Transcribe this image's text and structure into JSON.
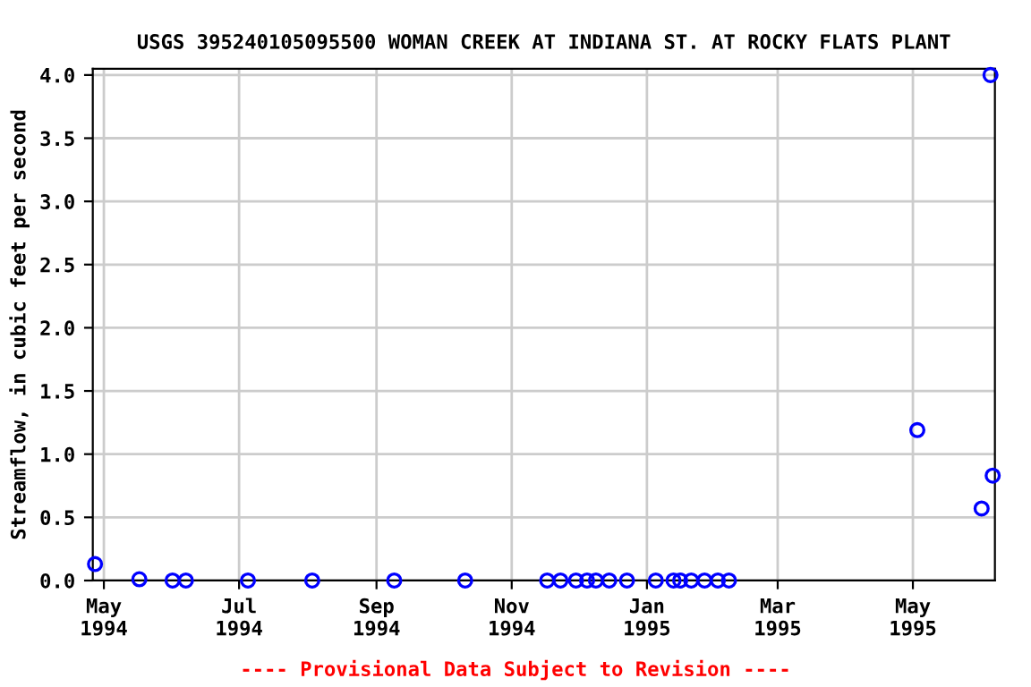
{
  "chart_data": {
    "type": "scatter",
    "title": "USGS 395240105095500 WOMAN CREEK AT INDIANA ST. AT ROCKY FLATS PLANT",
    "ylabel": "Streamflow, in cubic feet per second",
    "annotations": [
      "---- Provisional Data Subject to Revision ----"
    ],
    "x": [
      "1994-04-27",
      "1994-05-17",
      "1994-06-01",
      "1994-06-07",
      "1994-07-05",
      "1994-08-03",
      "1994-09-09",
      "1994-10-11",
      "1994-11-17",
      "1994-11-23",
      "1994-11-30",
      "1994-12-05",
      "1994-12-09",
      "1994-12-15",
      "1994-12-23",
      "1995-01-05",
      "1995-01-13",
      "1995-01-16",
      "1995-01-21",
      "1995-01-27",
      "1995-02-02",
      "1995-02-07",
      "1995-05-03",
      "1995-06-01",
      "1995-06-05",
      "1995-06-06"
    ],
    "series": [
      {
        "color": "#0000ff",
        "values": [
          0.13,
          0.01,
          0,
          0,
          0,
          0,
          0,
          0,
          0,
          0,
          0,
          0,
          0,
          0,
          0,
          0,
          0,
          0,
          0,
          0,
          0,
          0,
          1.19,
          0.57,
          4.0,
          0.83
        ]
      }
    ],
    "xlim": [
      "1994-04-26",
      "1995-06-07"
    ],
    "xticks": [
      {
        "value": "1994-05-01",
        "label": "May\n1994"
      },
      {
        "value": "1994-07-01",
        "label": "Jul\n1994"
      },
      {
        "value": "1994-09-01",
        "label": "Sep\n1994"
      },
      {
        "value": "1994-11-01",
        "label": "Nov\n1994"
      },
      {
        "value": "1995-01-01",
        "label": "Jan\n1995"
      },
      {
        "value": "1995-03-01",
        "label": "Mar\n1995"
      },
      {
        "value": "1995-05-01",
        "label": "May\n1995"
      }
    ],
    "ylim": [
      0,
      4.05
    ],
    "yticks": [
      {
        "value": 0,
        "label": "0.0"
      },
      {
        "value": 0.5,
        "label": "0.5"
      },
      {
        "value": 1,
        "label": "1.0"
      },
      {
        "value": 1.5,
        "label": "1.5"
      },
      {
        "value": 2,
        "label": "2.0"
      },
      {
        "value": 2.5,
        "label": "2.5"
      },
      {
        "value": 3,
        "label": "3.0"
      },
      {
        "value": 3.5,
        "label": "3.5"
      },
      {
        "value": 4,
        "label": "4.0"
      }
    ],
    "grid": true,
    "marker": "circle"
  }
}
